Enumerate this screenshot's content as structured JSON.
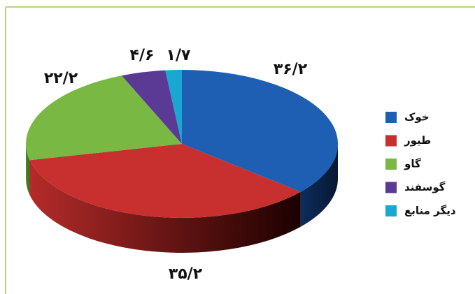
{
  "chart_data": {
    "type": "pie",
    "categories": [
      "خوک",
      "طیور",
      "گاو",
      "گوسفند",
      "دیگر منابع"
    ],
    "values": [
      36.2,
      35.2,
      22.2,
      4.6,
      1.7
    ],
    "value_labels": [
      "۳۶/۲",
      "۳۵/۲",
      "۲۲/۲",
      "۴/۶",
      "۱/۷"
    ],
    "colors": [
      "#1f5fb3",
      "#c8302f",
      "#78b843",
      "#5a3a94",
      "#1aa7d2"
    ],
    "legend": "right"
  }
}
